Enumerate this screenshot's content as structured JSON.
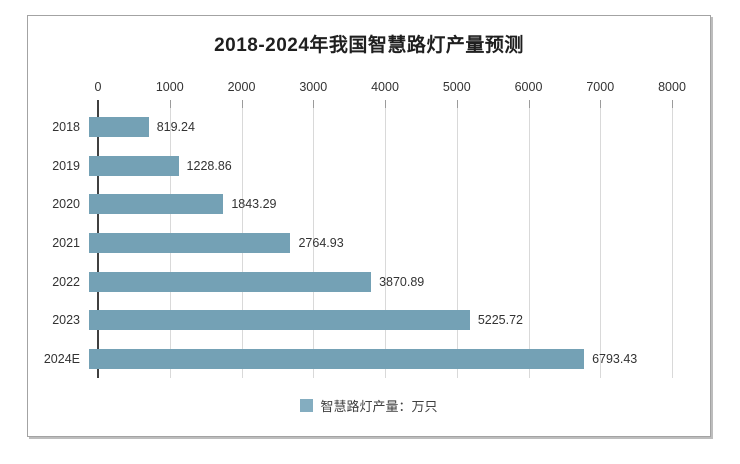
{
  "chart_data": {
    "type": "bar",
    "orientation": "horizontal",
    "title": "2018-2024年我国智慧路灯产量预测",
    "categories": [
      "2018",
      "2019",
      "2020",
      "2021",
      "2022",
      "2023",
      "2024E"
    ],
    "values": [
      819.24,
      1228.86,
      1843.29,
      2764.93,
      3870.89,
      5225.72,
      6793.43
    ],
    "value_labels": [
      "819.24",
      "1228.86",
      "1843.29",
      "2764.93",
      "3870.89",
      "5225.72",
      "6793.43"
    ],
    "xlim": [
      0,
      8000
    ],
    "xticks": [
      "0",
      "1000",
      "2000",
      "3000",
      "4000",
      "5000",
      "6000",
      "7000",
      "8000"
    ],
    "grid": true,
    "axis_position": "top",
    "legend": {
      "label": "智慧路灯产量：万只",
      "position": "bottom",
      "marker_color": "#84adc0"
    },
    "bar_color": "#74a1b5",
    "gridline_color": "#d9d9d9",
    "axis_line_color": "#404040",
    "title_color": "#1f1f1f",
    "label_color": "#333333",
    "frame_border_color": "#a3a3a3"
  }
}
